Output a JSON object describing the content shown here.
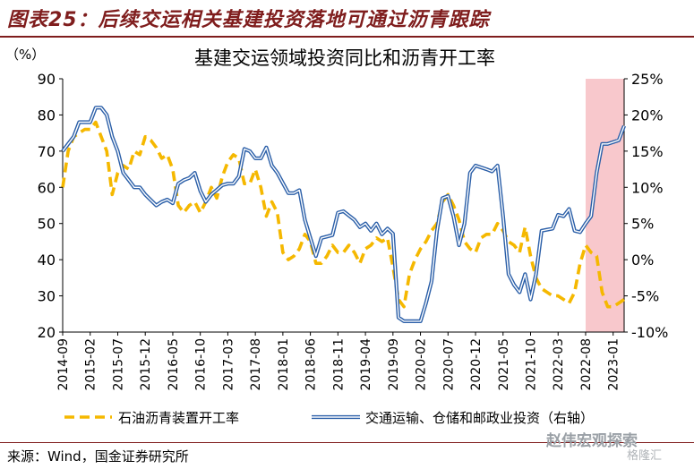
{
  "figure_title": "图表25：后续交运相关基建投资落地可通过沥青跟踪",
  "source_note": "来源：Wind，国金证券研究所",
  "watermark": "赵伟宏观探索",
  "watermark2": "格隆汇",
  "chart_data": {
    "type": "line",
    "title": "基建交运领域投资同比和沥青开工率",
    "ylabel_left": "（%）",
    "ylim_left": [
      20,
      90
    ],
    "yticks_left": [
      "90",
      "80",
      "70",
      "60",
      "50",
      "40",
      "30",
      "20"
    ],
    "ylim_right": [
      -10,
      25
    ],
    "yticks_right": [
      "25%",
      "20%",
      "15%",
      "10%",
      "5%",
      "0%",
      "-5%",
      "-10%"
    ],
    "x_tick_labels": [
      "2014-09",
      "2015-02",
      "2015-07",
      "2015-12",
      "2016-05",
      "2016-10",
      "2017-03",
      "2017-08",
      "2018-01",
      "2018-06",
      "2018-11",
      "2019-04",
      "2019-09",
      "2020-02",
      "2020-07",
      "2020-12",
      "2021-05",
      "2021-10",
      "2022-03",
      "2022-08",
      "2023-01"
    ],
    "x_start": "2014-09",
    "x_end": "2023-03",
    "shaded_region": {
      "from": "2022-08",
      "to": "2023-03",
      "color": "#f8c8cc"
    },
    "colors": {
      "asphalt": "#f5b800",
      "transport": "#2b5fa8",
      "transport_inner": "#ffffff"
    },
    "series": [
      {
        "name": "石油沥青装置开工率",
        "axis": "left",
        "style": "dashed",
        "x": [
          "2014-09",
          "2014-10",
          "2014-11",
          "2014-12",
          "2015-01",
          "2015-02",
          "2015-03",
          "2015-04",
          "2015-05",
          "2015-06",
          "2015-07",
          "2015-08",
          "2015-09",
          "2015-10",
          "2015-11",
          "2015-12",
          "2016-01",
          "2016-02",
          "2016-03",
          "2016-04",
          "2016-05",
          "2016-06",
          "2016-07",
          "2016-08",
          "2016-09",
          "2016-10",
          "2016-11",
          "2016-12",
          "2017-01",
          "2017-02",
          "2017-03",
          "2017-04",
          "2017-05",
          "2017-06",
          "2017-07",
          "2017-08",
          "2017-09",
          "2017-10",
          "2017-11",
          "2017-12",
          "2018-01",
          "2018-02",
          "2018-03",
          "2018-04",
          "2018-05",
          "2018-06",
          "2018-07",
          "2018-08",
          "2018-09",
          "2018-10",
          "2018-11",
          "2018-12",
          "2019-01",
          "2019-02",
          "2019-03",
          "2019-04",
          "2019-05",
          "2019-06",
          "2019-07",
          "2019-08",
          "2019-09",
          "2019-10",
          "2019-11",
          "2019-12",
          "2020-01",
          "2020-02",
          "2020-03",
          "2020-04",
          "2020-05",
          "2020-06",
          "2020-07",
          "2020-08",
          "2020-09",
          "2020-10",
          "2020-11",
          "2020-12",
          "2021-01",
          "2021-02",
          "2021-03",
          "2021-04",
          "2021-05",
          "2021-06",
          "2021-07",
          "2021-08",
          "2021-09",
          "2021-10",
          "2021-11",
          "2021-12",
          "2022-01",
          "2022-02",
          "2022-03",
          "2022-04",
          "2022-05",
          "2022-06",
          "2022-07",
          "2022-08",
          "2022-09",
          "2022-10",
          "2022-11",
          "2022-12",
          "2023-01",
          "2023-02",
          "2023-03"
        ],
        "values": [
          60,
          70,
          74,
          75,
          76,
          76,
          78,
          74,
          70,
          58,
          64,
          66,
          65,
          70,
          69,
          74,
          73,
          71,
          68,
          69,
          65,
          55,
          53,
          55,
          56,
          53,
          56,
          60,
          57,
          63,
          67,
          69,
          68,
          61,
          61,
          65,
          60,
          52,
          56,
          53,
          42,
          40,
          41,
          43,
          47,
          45,
          39,
          39,
          41,
          44,
          42,
          42,
          44,
          42,
          39,
          43,
          44,
          46,
          45,
          46,
          38,
          29,
          27,
          36,
          40,
          43,
          45,
          48,
          50,
          56,
          58,
          55,
          51,
          45,
          43,
          42,
          46,
          47,
          47,
          50,
          48,
          45,
          44,
          42,
          49,
          41,
          35,
          32,
          31,
          30,
          30,
          29,
          28,
          31,
          39,
          44,
          42,
          41,
          31,
          27,
          27,
          28,
          29
        ]
      },
      {
        "name": "交通运输、仓储和邮政业投资（右轴）",
        "axis": "right",
        "style": "double",
        "x": [
          "2014-09",
          "2014-10",
          "2014-11",
          "2014-12",
          "2015-02",
          "2015-03",
          "2015-04",
          "2015-05",
          "2015-06",
          "2015-07",
          "2015-08",
          "2015-09",
          "2015-10",
          "2015-11",
          "2015-12",
          "2016-02",
          "2016-03",
          "2016-04",
          "2016-05",
          "2016-06",
          "2016-07",
          "2016-08",
          "2016-09",
          "2016-10",
          "2016-11",
          "2016-12",
          "2017-02",
          "2017-03",
          "2017-04",
          "2017-05",
          "2017-06",
          "2017-07",
          "2017-08",
          "2017-09",
          "2017-10",
          "2017-11",
          "2017-12",
          "2018-02",
          "2018-03",
          "2018-04",
          "2018-05",
          "2018-06",
          "2018-07",
          "2018-08",
          "2018-09",
          "2018-10",
          "2018-11",
          "2018-12",
          "2019-02",
          "2019-03",
          "2019-04",
          "2019-05",
          "2019-06",
          "2019-07",
          "2019-08",
          "2019-09",
          "2019-10",
          "2019-11",
          "2019-12",
          "2020-02",
          "2020-03",
          "2020-04",
          "2020-05",
          "2020-06",
          "2020-07",
          "2020-08",
          "2020-09",
          "2020-10",
          "2020-11",
          "2020-12",
          "2021-02",
          "2021-03",
          "2021-04",
          "2021-05",
          "2021-06",
          "2021-07",
          "2021-08",
          "2021-09",
          "2021-10",
          "2021-11",
          "2021-12",
          "2022-02",
          "2022-03",
          "2022-04",
          "2022-05",
          "2022-06",
          "2022-07",
          "2022-08",
          "2022-09",
          "2022-10",
          "2022-11",
          "2022-12",
          "2023-02",
          "2023-03"
        ],
        "values": [
          15,
          16,
          17,
          19,
          19,
          21,
          21,
          20,
          17,
          15,
          12,
          11,
          10,
          10,
          9,
          7.5,
          8,
          8.3,
          7.8,
          10.5,
          11,
          11.3,
          12,
          9.5,
          8,
          9,
          10.3,
          10.5,
          10.5,
          11.5,
          15.3,
          15,
          14,
          14,
          15.5,
          13,
          12,
          9.2,
          9.2,
          9.6,
          5.5,
          3,
          0.5,
          3,
          3.2,
          3.4,
          6.5,
          6.7,
          5.5,
          4.5,
          5,
          4,
          5,
          3.5,
          4.3,
          3.6,
          -8,
          -8.5,
          -8.5,
          -8.5,
          -6,
          -3,
          4,
          8.5,
          8.8,
          6,
          2,
          5,
          12,
          13,
          12.5,
          12.2,
          13,
          6,
          -2,
          -3.5,
          -4.5,
          -2,
          -5.5,
          -2,
          4,
          4.3,
          6.2,
          6,
          7,
          4,
          3.8,
          5,
          6,
          12,
          16,
          16,
          16.5,
          18.5
        ]
      }
    ]
  }
}
